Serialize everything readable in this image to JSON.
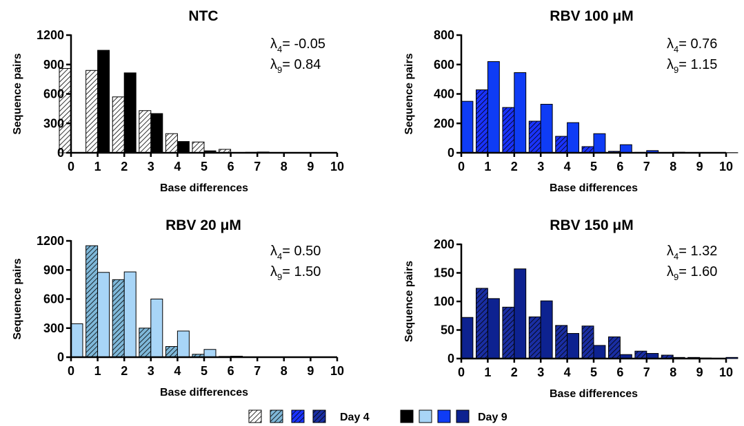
{
  "chart_data": [
    {
      "type": "bar",
      "title": "NTC",
      "xlabel": "Base differences",
      "ylabel": "Sequence pairs",
      "x": [
        0,
        1,
        2,
        3,
        4,
        5,
        6,
        7,
        8,
        9,
        10
      ],
      "ylim": [
        0,
        1200
      ],
      "yticks": [
        0,
        300,
        600,
        900,
        1200
      ],
      "annotations": [
        {
          "symbol": "λ",
          "sub": "4",
          "text": "= -0.05"
        },
        {
          "symbol": "λ",
          "sub": "9",
          "text": "=  0.84"
        }
      ],
      "series": [
        {
          "name": "Day 4",
          "values": [
            860,
            840,
            570,
            430,
            195,
            110,
            35,
            5,
            2,
            1,
            0
          ]
        },
        {
          "name": "Day 9",
          "values": [
            0,
            1045,
            815,
            400,
            115,
            20,
            3,
            8,
            0,
            0,
            0
          ]
        }
      ],
      "colors": {
        "Day 4": "#ffffff",
        "Day 9": "#000000"
      }
    },
    {
      "type": "bar",
      "title": "RBV 100 μM",
      "xlabel": "Base differences",
      "ylabel": "Sequence pairs",
      "x": [
        0,
        1,
        2,
        3,
        4,
        5,
        6,
        7,
        8,
        9,
        10
      ],
      "ylim": [
        0,
        800
      ],
      "yticks": [
        0,
        200,
        400,
        600,
        800
      ],
      "annotations": [
        {
          "symbol": "λ",
          "sub": "4",
          "text": "= 0.76"
        },
        {
          "symbol": "λ",
          "sub": "9",
          "text": "= 1.15"
        }
      ],
      "series": [
        {
          "name": "Day 4",
          "values": [
            0,
            428,
            308,
            215,
            112,
            42,
            10,
            3,
            2,
            1,
            0
          ]
        },
        {
          "name": "Day 9",
          "values": [
            350,
            620,
            545,
            330,
            205,
            130,
            55,
            15,
            4,
            2,
            1
          ]
        }
      ],
      "colors": {
        "Day 4": "#1a33ff",
        "Day 9": "#0f3cf5"
      }
    },
    {
      "type": "bar",
      "title": "RBV 20 μM",
      "xlabel": "Base differences",
      "ylabel": "Sequence pairs",
      "x": [
        0,
        1,
        2,
        3,
        4,
        5,
        6,
        7,
        8,
        9,
        10
      ],
      "ylim": [
        0,
        1200
      ],
      "yticks": [
        0,
        300,
        600,
        900,
        1200
      ],
      "annotations": [
        {
          "symbol": "λ",
          "sub": "4",
          "text": "= 0.50"
        },
        {
          "symbol": "λ",
          "sub": "9",
          "text": "= 1.50"
        }
      ],
      "series": [
        {
          "name": "Day 4",
          "values": [
            0,
            1150,
            800,
            300,
            110,
            30,
            8,
            2,
            1,
            0,
            0
          ]
        },
        {
          "name": "Day 9",
          "values": [
            345,
            875,
            880,
            600,
            270,
            80,
            10,
            3,
            1,
            0,
            0
          ]
        }
      ],
      "colors": {
        "Day 4": "#7fb8d9",
        "Day 9": "#a8d5f7"
      }
    },
    {
      "type": "bar",
      "title": "RBV 150 μM",
      "xlabel": "Base differences",
      "ylabel": "Sequence pairs",
      "x": [
        0,
        1,
        2,
        3,
        4,
        5,
        6,
        7,
        8,
        9,
        10
      ],
      "ylim": [
        0,
        200
      ],
      "yticks": [
        0,
        50,
        100,
        150,
        200
      ],
      "annotations": [
        {
          "symbol": "λ",
          "sub": "4",
          "text": "= 1.32"
        },
        {
          "symbol": "λ",
          "sub": "9",
          "text": "= 1.60"
        }
      ],
      "series": [
        {
          "name": "Day 4",
          "values": [
            0,
            123,
            90,
            73,
            58,
            57,
            38,
            13,
            6,
            2,
            0
          ]
        },
        {
          "name": "Day 9",
          "values": [
            72,
            105,
            157,
            101,
            44,
            23,
            7,
            9,
            2,
            1,
            2
          ]
        }
      ],
      "colors": {
        "Day 4": "#1a2ea3",
        "Day 9": "#0d2290"
      }
    }
  ],
  "legend": {
    "day4_label": "Day 4",
    "day9_label": "Day 9",
    "day4_colors": [
      "#ffffff",
      "#7fb8d9",
      "#1a33ff",
      "#1a2ea3"
    ],
    "day9_colors": [
      "#000000",
      "#a8d5f7",
      "#0f3cf5",
      "#0d2290"
    ]
  }
}
